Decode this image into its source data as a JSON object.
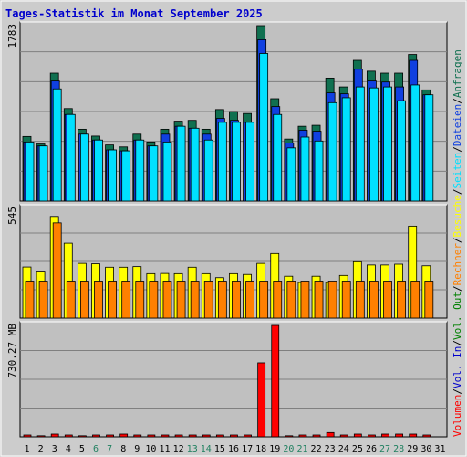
{
  "title": "Tages-Statistik im Monat September 2025",
  "colors": {
    "background": "#cccccc",
    "plot_bg": "#c0c0c0",
    "title": "#0000cc",
    "anfragen": "#107050",
    "dateien": "#1040e0",
    "seiten": "#00e0ff",
    "besuche": "#ffff00",
    "rechner": "#ff8000",
    "vol_in": "#0000cc",
    "vol_out": "#008000",
    "volumen": "#ff0000",
    "weekend": "#208060",
    "weekday": "#000000"
  },
  "legend": {
    "anfragen": "Anfragen",
    "dateien": "Dateien",
    "seiten": "Seiten",
    "besuche": "Besuche",
    "rechner": "Rechner",
    "vol_out": "Vol. Out",
    "vol_in": "Vol. In",
    "volumen": "Volumen",
    "sep": "/"
  },
  "chart_data": {
    "type": "bar",
    "categories": [
      "1",
      "2",
      "3",
      "4",
      "5",
      "6",
      "7",
      "8",
      "9",
      "10",
      "11",
      "12",
      "13",
      "14",
      "15",
      "16",
      "17",
      "18",
      "19",
      "20",
      "21",
      "22",
      "23",
      "24",
      "25",
      "26",
      "27",
      "28",
      "29",
      "30",
      "31"
    ],
    "weekend_days": [
      "6",
      "7",
      "13",
      "14",
      "20",
      "21",
      "27",
      "28"
    ],
    "panels": [
      {
        "ylabel": "1783",
        "ymax": 1783,
        "series": [
          {
            "name": "Anfragen",
            "values": [
              656,
              580,
              1300,
              940,
              730,
              660,
              570,
              550,
              680,
              600,
              730,
              812,
              820,
              730,
              930,
              910,
              890,
              1783,
              1040,
              630,
              760,
              770,
              1250,
              1160,
              1430,
              1320,
              1300,
              1300,
              1490,
              1130,
              null
            ]
          },
          {
            "name": "Dateien",
            "values": [
              600,
              560,
              1220,
              880,
              680,
              620,
              520,
              510,
              620,
              560,
              680,
              760,
              740,
              680,
              840,
              820,
              800,
              1640,
              960,
              590,
              720,
              710,
              1100,
              1090,
              1340,
              1220,
              1210,
              1160,
              1430,
              1080,
              null
            ]
          },
          {
            "name": "Seiten",
            "values": [
              600,
              560,
              1140,
              880,
              680,
              620,
              520,
              510,
              620,
              560,
              600,
              760,
              740,
              620,
              800,
              800,
              800,
              1500,
              880,
              540,
              650,
              610,
              1000,
              1050,
              1160,
              1150,
              1160,
              1020,
              1180,
              1080,
              null
            ]
          }
        ]
      },
      {
        "ylabel": "545",
        "ymax": 545,
        "series": [
          {
            "name": "Besuche",
            "values": [
              254,
              229,
              505,
              372,
              272,
              270,
              253,
              253,
              256,
              221,
              222,
              221,
              253,
              221,
              201,
              221,
              217,
              272,
              321,
              208,
              177,
              208,
              177,
              212,
              280,
              264,
              264,
              268,
              457,
              260,
              null
            ]
          },
          {
            "name": "Rechner",
            "values": [
              184,
              184,
              473,
              184,
              184,
              184,
              184,
              184,
              184,
              184,
              184,
              184,
              184,
              184,
              184,
              184,
              184,
              184,
              184,
              184,
              184,
              184,
              184,
              184,
              184,
              184,
              184,
              184,
              184,
              184,
              null
            ]
          }
        ]
      },
      {
        "ylabel": "730.27 MB",
        "ymax": 730.27,
        "series": [
          {
            "name": "Volumen",
            "values": [
              12,
              7,
              18,
              12,
              7,
              12,
              12,
              18,
              12,
              12,
              12,
              12,
              12,
              12,
              12,
              12,
              12,
              485,
              730.27,
              7,
              12,
              12,
              28,
              12,
              18,
              12,
              18,
              18,
              18,
              12,
              null
            ]
          }
        ]
      }
    ]
  }
}
